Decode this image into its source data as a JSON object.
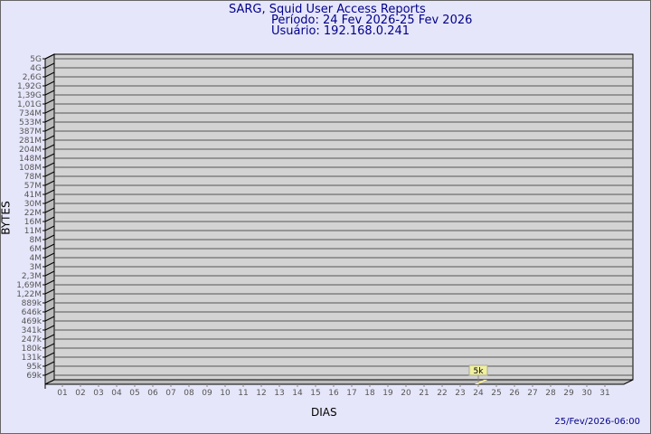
{
  "chart_data": {
    "type": "bar",
    "title": "SARG, Squid User Access Reports",
    "subtitle_period": "Período: 24 Fev 2026-25 Fev 2026",
    "subtitle_user": "Usuário: 192.168.0.241",
    "xlabel": "DIAS",
    "ylabel": "BYTES",
    "y_scale": "log",
    "grid": true,
    "categories": [
      "01",
      "02",
      "03",
      "04",
      "05",
      "06",
      "07",
      "08",
      "09",
      "10",
      "11",
      "12",
      "13",
      "14",
      "15",
      "16",
      "17",
      "18",
      "19",
      "20",
      "21",
      "22",
      "23",
      "24",
      "25",
      "26",
      "27",
      "28",
      "29",
      "30",
      "31"
    ],
    "y_tick_labels": [
      "5G",
      "4G",
      "2,6G",
      "1,92G",
      "1,39G",
      "1,01G",
      "734M",
      "533M",
      "387M",
      "281M",
      "204M",
      "148M",
      "108M",
      "78M",
      "57M",
      "41M",
      "30M",
      "22M",
      "16M",
      "11M",
      "8M",
      "6M",
      "4M",
      "3M",
      "2,3M",
      "1,69M",
      "1,22M",
      "889k",
      "646k",
      "469k",
      "341k",
      "247k",
      "180k",
      "131k",
      "95k",
      "69k"
    ],
    "series": [
      {
        "points": [
          {
            "x": "24",
            "value": 5000,
            "label": "5k"
          }
        ]
      }
    ],
    "colors": {
      "wall": "#d3d3d3",
      "bar": "#ffee99",
      "text": "#00008b",
      "background": "#e6e6fa"
    }
  },
  "footer": {
    "timestamp": "25/Fev/2026-06:00"
  }
}
